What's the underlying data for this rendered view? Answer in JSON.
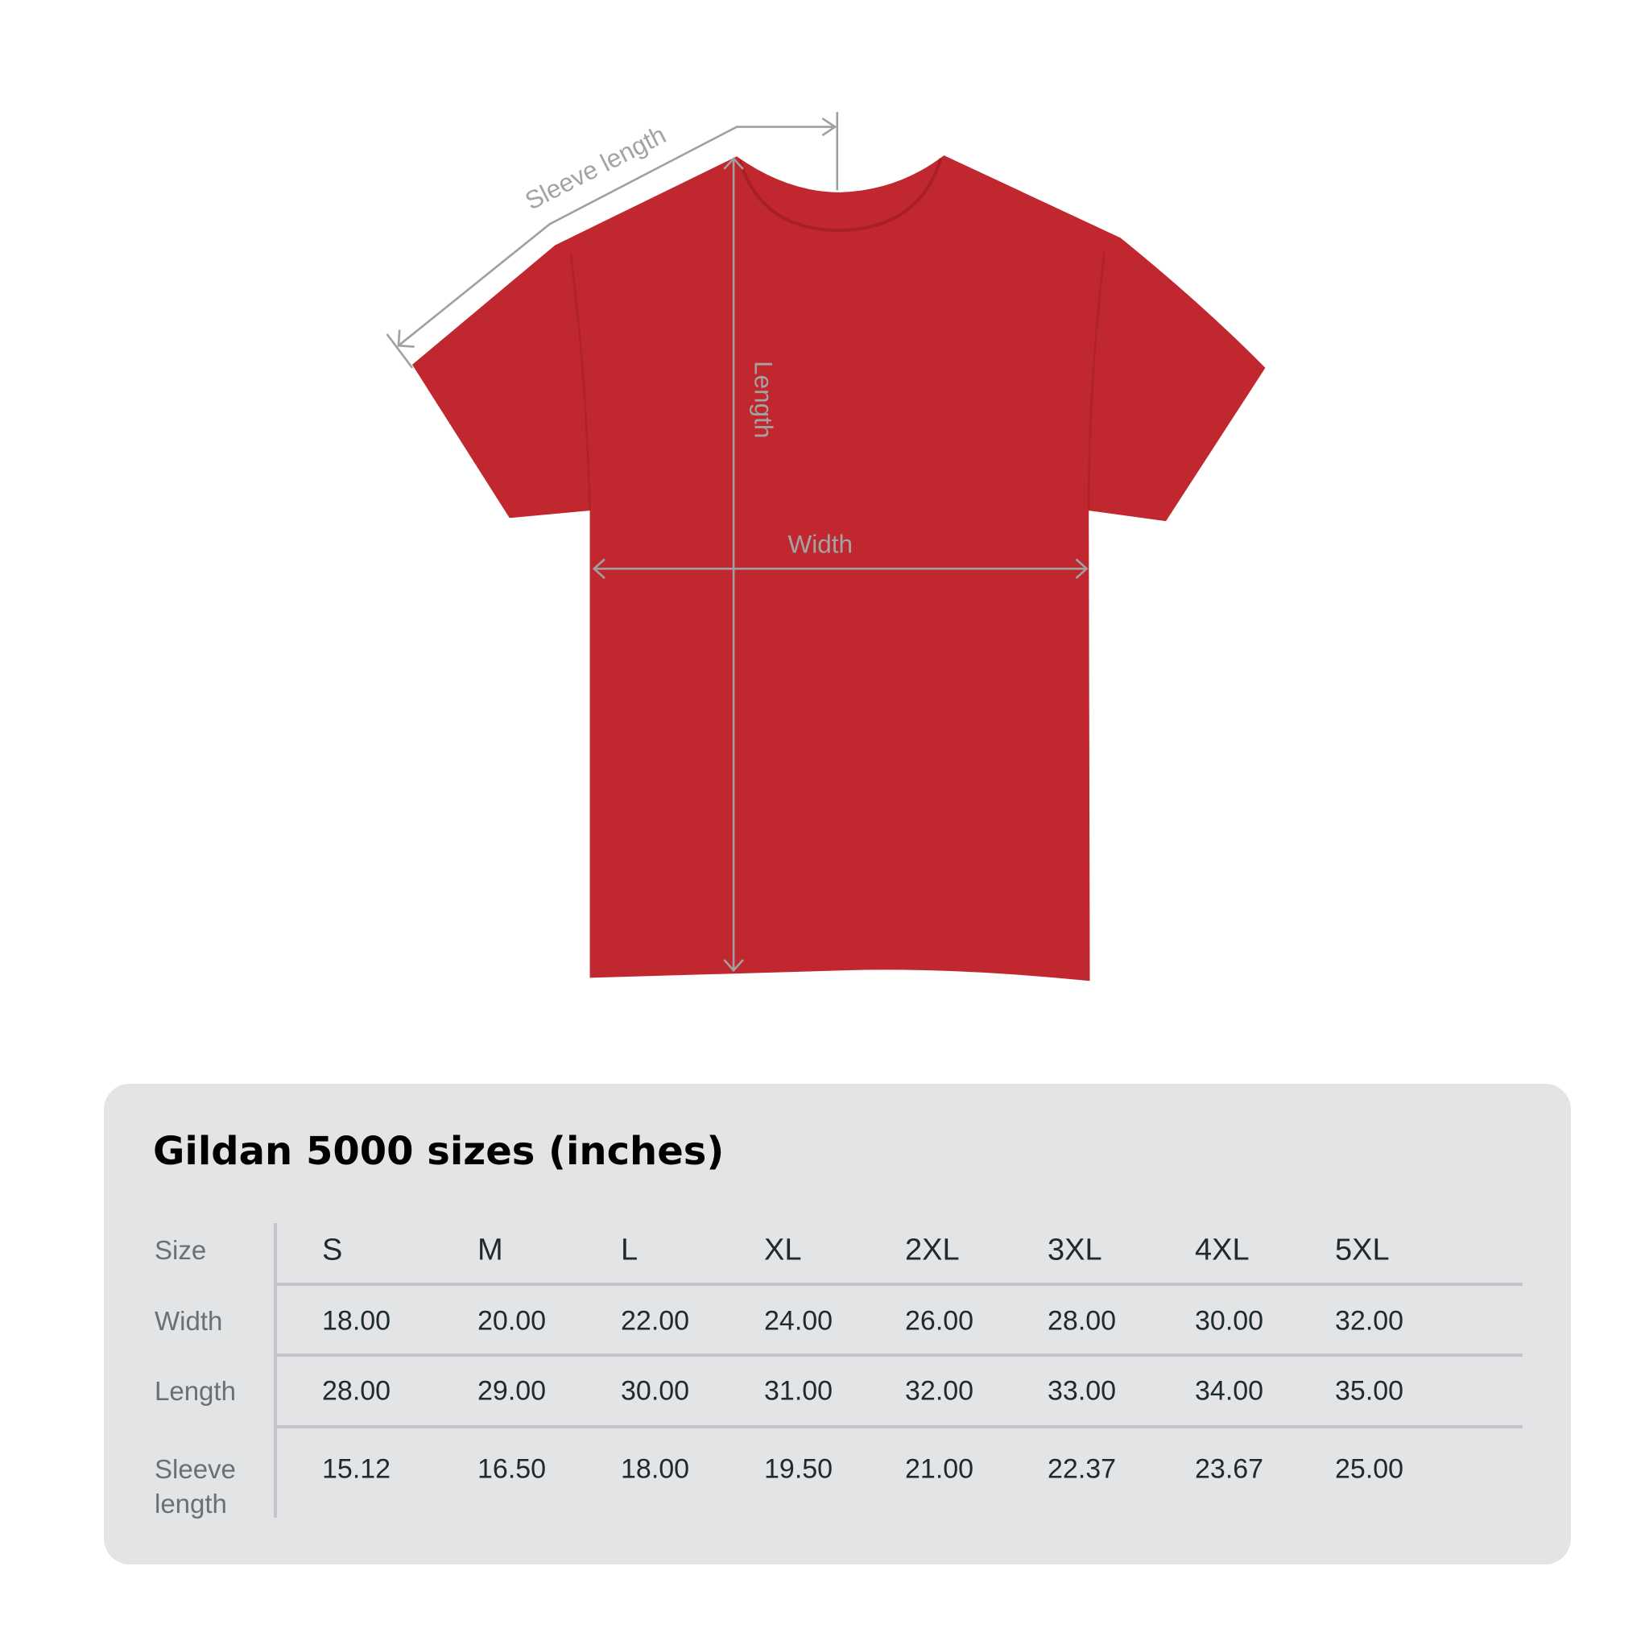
{
  "diagram": {
    "labels": {
      "sleeve": "Sleeve length",
      "length": "Length",
      "width": "Width"
    },
    "shirt_color": "#c1272f",
    "line_color": "#a0a0a0"
  },
  "table": {
    "title": "Gildan 5000 sizes (inches)",
    "row_labels": {
      "size": "Size",
      "width": "Width",
      "length": "Length",
      "sleeve_1": "Sleeve",
      "sleeve_2": "length"
    },
    "sizes": [
      "S",
      "M",
      "L",
      "XL",
      "2XL",
      "3XL",
      "4XL",
      "5XL"
    ],
    "width": [
      "18.00",
      "20.00",
      "22.00",
      "24.00",
      "26.00",
      "28.00",
      "30.00",
      "32.00"
    ],
    "length": [
      "28.00",
      "29.00",
      "30.00",
      "31.00",
      "32.00",
      "33.00",
      "34.00",
      "35.00"
    ],
    "sleeve": [
      "15.12",
      "16.50",
      "18.00",
      "19.50",
      "21.00",
      "22.37",
      "23.67",
      "25.00"
    ]
  }
}
